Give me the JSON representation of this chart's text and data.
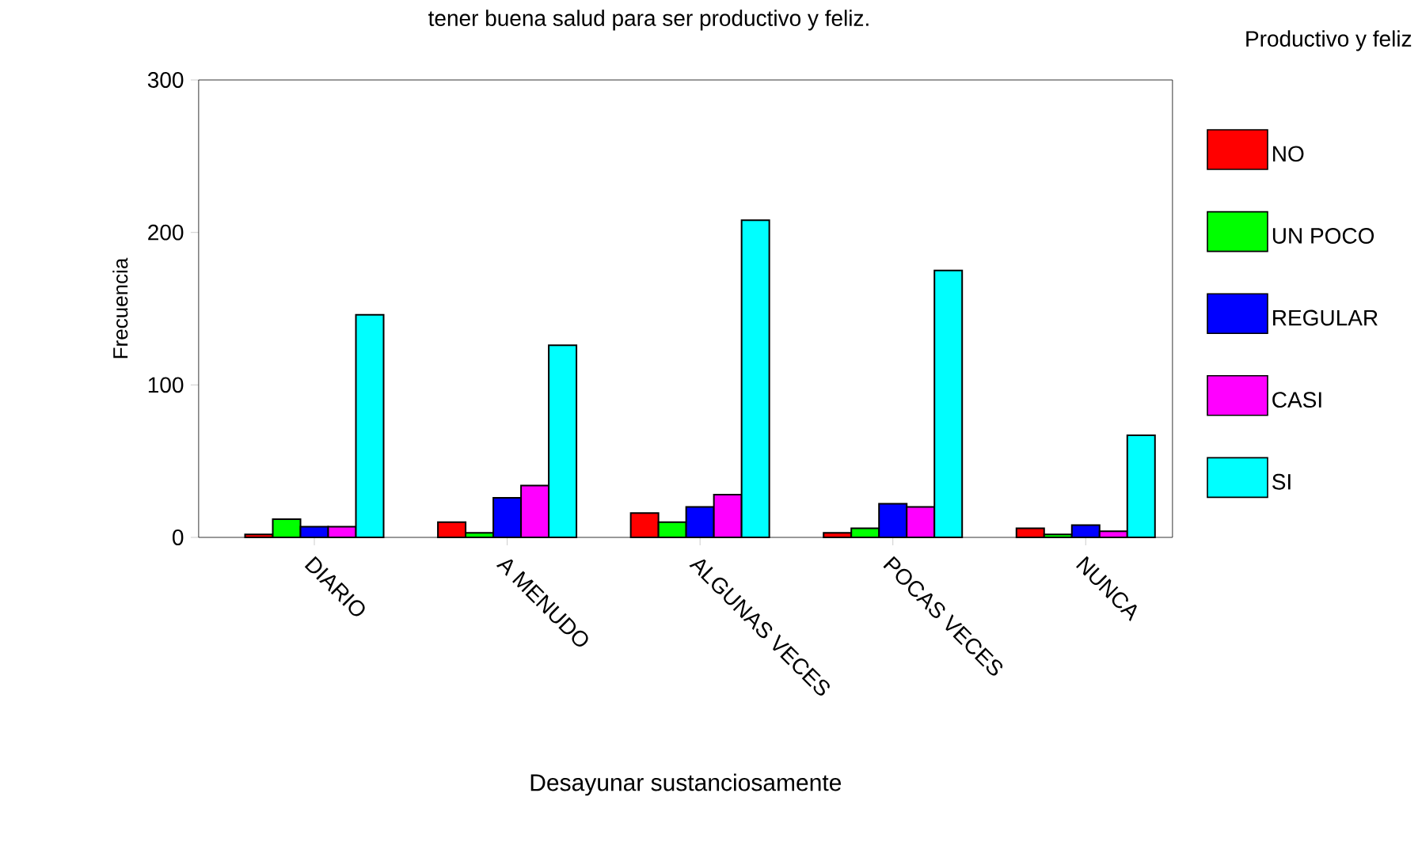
{
  "chart_data": {
    "type": "bar",
    "title": "tener buena salud para ser productivo y feliz.",
    "xlabel": "Desayunar sustanciosamente",
    "ylabel": "Frecuencia",
    "legend_title": "Productivo y feliz",
    "legend": "right",
    "grid": false,
    "categories": [
      "DIARIO",
      "A MENUDO",
      "ALGUNAS VECES",
      "POCAS VECES",
      "NUNCA"
    ],
    "ylim": [
      0,
      300
    ],
    "yticks": [
      0,
      100,
      200,
      300
    ],
    "series": [
      {
        "name": "NO",
        "color": "#ff0000",
        "values": [
          2,
          10,
          16,
          3,
          6
        ]
      },
      {
        "name": "UN POCO",
        "color": "#00ff00",
        "values": [
          12,
          3,
          10,
          6,
          2
        ]
      },
      {
        "name": "REGULAR",
        "color": "#0000ff",
        "values": [
          7,
          26,
          20,
          22,
          8
        ]
      },
      {
        "name": "CASI",
        "color": "#ff00ff",
        "values": [
          7,
          34,
          28,
          20,
          4
        ]
      },
      {
        "name": "SI",
        "color": "#00ffff",
        "values": [
          146,
          126,
          208,
          175,
          67
        ]
      }
    ]
  }
}
